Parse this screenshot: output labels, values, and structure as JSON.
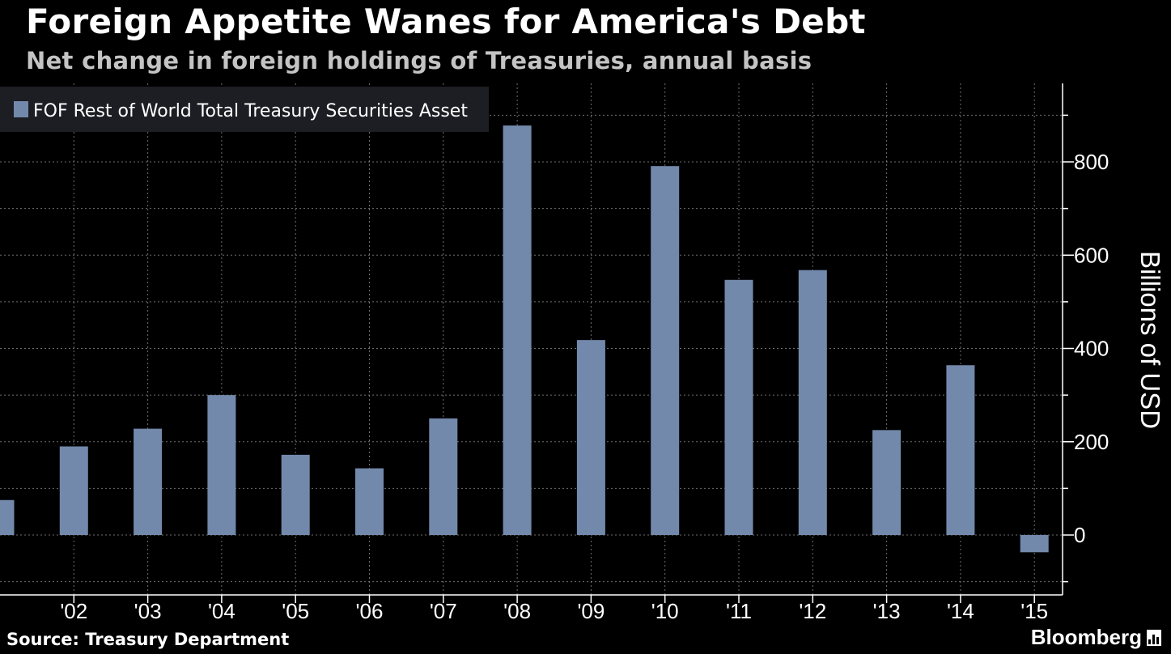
{
  "title": "Foreign Appetite Wanes for America's Debt",
  "subtitle": "Net change in foreign holdings of Treasuries, annual basis",
  "source": "Source: Treasury Department",
  "brand": "Bloomberg",
  "colors": {
    "background": "#000000",
    "bar": "#7289ab",
    "grid": "#8a8a8a",
    "legend_bg": "#1c1e23",
    "text": "#ffffff"
  },
  "chart_data": {
    "type": "bar",
    "categories": [
      "",
      "'02",
      "'03",
      "'04",
      "'05",
      "'06",
      "'07",
      "'08",
      "'09",
      "'10",
      "'11",
      "'12",
      "'13",
      "'14",
      "'15"
    ],
    "series": [
      {
        "name": "FOF Rest of World Total Treasury Securities Asset",
        "values": [
          75,
          190,
          228,
          300,
          172,
          143,
          250,
          878,
          418,
          791,
          547,
          568,
          225,
          364,
          -37
        ]
      }
    ],
    "ylabel": "Billions of USD",
    "yticks": [
      0,
      200,
      400,
      600,
      800
    ],
    "ylim": [
      -125,
      960
    ],
    "y_axis_side": "right",
    "grid": true,
    "legend_position": "top-left"
  }
}
